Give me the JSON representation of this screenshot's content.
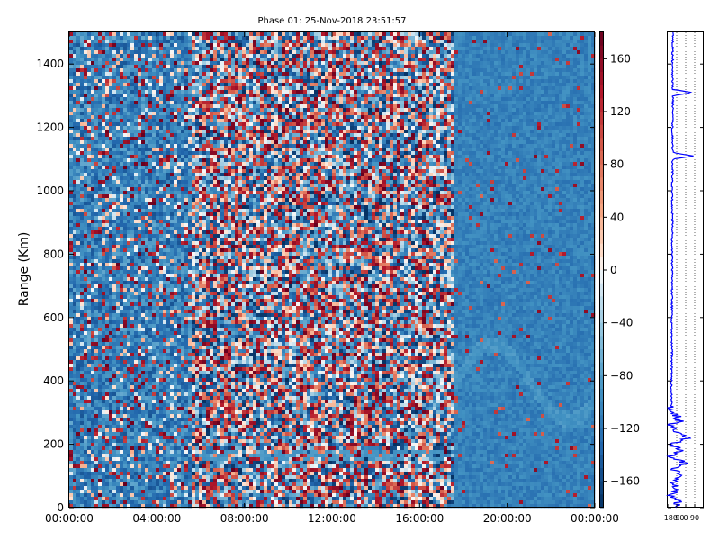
{
  "chart_data": [
    {
      "type": "heatmap",
      "title": "Phase 01: 25-Nov-2018 23:51:57",
      "xlabel": "",
      "ylabel": "Range (Km)",
      "x_tick_labels": [
        "00:00:00",
        "04:00:00",
        "08:00:00",
        "12:00:00",
        "16:00:00",
        "20:00:00",
        "00:00:00"
      ],
      "y_ticks": [
        0,
        200,
        400,
        600,
        800,
        1000,
        1200,
        1400
      ],
      "ylim": [
        0,
        1500
      ],
      "colormap": "RdBu_r",
      "colorbar_range": [
        -180,
        180
      ],
      "colorbar_ticks": [
        160,
        120,
        80,
        40,
        0,
        -40,
        -80,
        -120,
        -160
      ],
      "description_regions": [
        {
          "time_span": [
            "00:00",
            "05:30"
          ],
          "range_span": [
            0,
            1500
          ],
          "pattern": "mostly blue (-120 to -80) with scattered red"
        },
        {
          "time_span": [
            "05:30",
            "17:30"
          ],
          "range_span": [
            0,
            1500
          ],
          "pattern": "random phase, alternating red/white/blue columns"
        },
        {
          "time_span": [
            "17:30",
            "24:00"
          ],
          "range_span": [
            0,
            1500
          ],
          "pattern": "smooth blue (-120 to -100) with faint arcs"
        }
      ]
    },
    {
      "type": "line",
      "title": "",
      "xlabel": "",
      "ylabel": "",
      "x_tick_labels": [
        "−180",
        "−90",
        "0",
        "90"
      ],
      "xlim": [
        -180,
        180
      ],
      "ylim": [
        0,
        1500
      ],
      "series": [
        {
          "color": "#0000ff",
          "profile": [
            [
              0,
              -120
            ],
            [
              20,
              -60
            ],
            [
              40,
              -150
            ],
            [
              60,
              -70
            ],
            [
              80,
              -140
            ],
            [
              100,
              -20
            ],
            [
              120,
              -130
            ],
            [
              140,
              10
            ],
            [
              160,
              -160
            ],
            [
              180,
              -40
            ],
            [
              200,
              -150
            ],
            [
              220,
              20
            ],
            [
              240,
              -100
            ],
            [
              260,
              -170
            ],
            [
              270,
              -60
            ],
            [
              290,
              -90
            ],
            [
              310,
              -150
            ],
            [
              340,
              -140
            ],
            [
              380,
              -145
            ],
            [
              420,
              -142
            ],
            [
              500,
              -138
            ],
            [
              600,
              -140
            ],
            [
              700,
              -135
            ],
            [
              800,
              -138
            ],
            [
              900,
              -132
            ],
            [
              1000,
              -136
            ],
            [
              1100,
              -130
            ],
            [
              1110,
              80
            ],
            [
              1120,
              -130
            ],
            [
              1200,
              -135
            ],
            [
              1300,
              -128
            ],
            [
              1310,
              60
            ],
            [
              1320,
              -130
            ],
            [
              1400,
              -132
            ],
            [
              1500,
              -128
            ]
          ]
        }
      ]
    }
  ]
}
